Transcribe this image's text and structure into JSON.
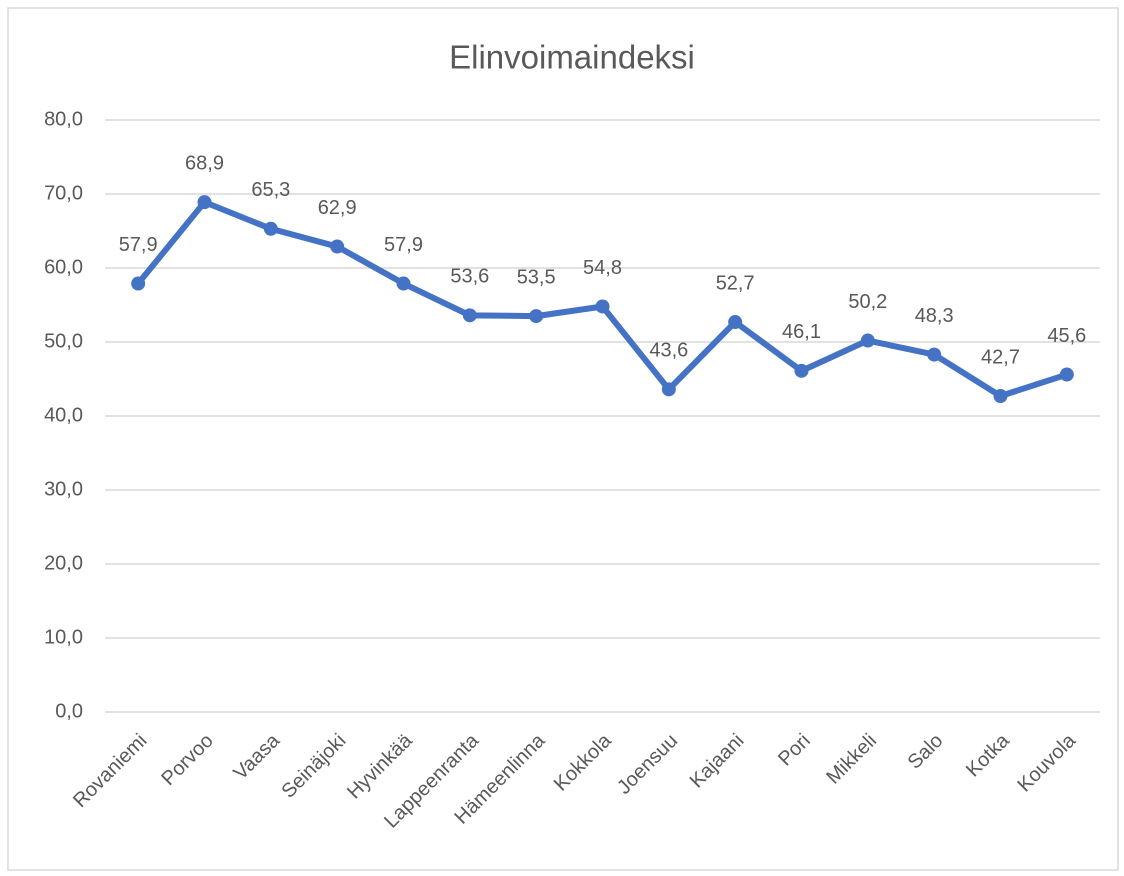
{
  "chart_data": {
    "type": "line",
    "title": "Elinvoimaindeksi",
    "categories": [
      "Rovaniemi",
      "Porvoo",
      "Vaasa",
      "Seinäjoki",
      "Hyvinkää",
      "Lappeenranta",
      "Hämeenlinna",
      "Kokkola",
      "Joensuu",
      "Kajaani",
      "Pori",
      "Mikkeli",
      "Salo",
      "Kotka",
      "Kouvola"
    ],
    "series": [
      {
        "name": "Elinvoimaindeksi",
        "color": "#4472c4",
        "values": [
          57.9,
          68.9,
          65.3,
          62.9,
          57.9,
          53.6,
          53.5,
          54.8,
          43.6,
          52.7,
          46.1,
          50.2,
          48.3,
          42.7,
          45.6
        ],
        "value_labels": [
          "57,9",
          "68,9",
          "65,3",
          "62,9",
          "57,9",
          "53,6",
          "53,5",
          "54,8",
          "43,6",
          "52,7",
          "46,1",
          "50,2",
          "48,3",
          "42,7",
          "45,6"
        ]
      }
    ],
    "ylim": [
      0,
      80
    ],
    "yticks": [
      {
        "value": 0,
        "label": "0,0"
      },
      {
        "value": 10,
        "label": "10,0"
      },
      {
        "value": 20,
        "label": "20,0"
      },
      {
        "value": 30,
        "label": "30,0"
      },
      {
        "value": 40,
        "label": "40,0"
      },
      {
        "value": 50,
        "label": "50,0"
      },
      {
        "value": 60,
        "label": "60,0"
      },
      {
        "value": 70,
        "label": "70,0"
      },
      {
        "value": 80,
        "label": "80,0"
      }
    ],
    "grid": true
  }
}
